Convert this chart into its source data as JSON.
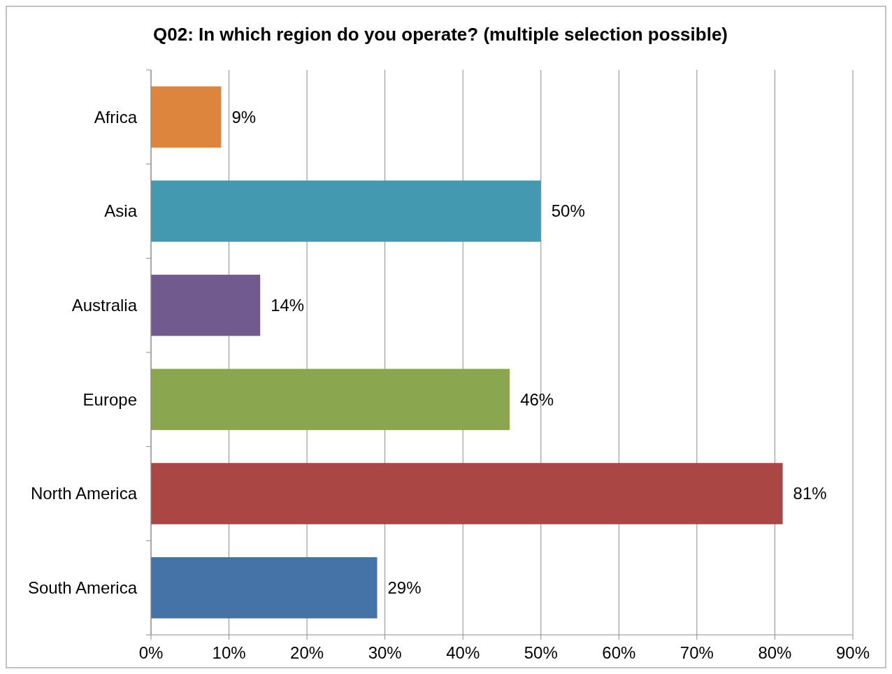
{
  "chart_data": {
    "type": "bar",
    "orientation": "horizontal",
    "title": "Q02: In which region do you operate? (multiple selection possible)",
    "categories": [
      "Africa",
      "Asia",
      "Australia",
      "Europe",
      "North America",
      "South America"
    ],
    "values": [
      9,
      50,
      14,
      46,
      81,
      29
    ],
    "colors": [
      "#dd843d",
      "#4399b0",
      "#715a8e",
      "#8aa64f",
      "#aa4644",
      "#4572a7"
    ],
    "value_labels": [
      "9%",
      "50%",
      "14%",
      "46%",
      "81%",
      "29%"
    ],
    "xlim": [
      0,
      90
    ],
    "xticks": [
      {
        "value": 0,
        "label": "0%"
      },
      {
        "value": 10,
        "label": "10%"
      },
      {
        "value": 20,
        "label": "20%"
      },
      {
        "value": 30,
        "label": "30%"
      },
      {
        "value": 40,
        "label": "40%"
      },
      {
        "value": 50,
        "label": "50%"
      },
      {
        "value": 60,
        "label": "60%"
      },
      {
        "value": 70,
        "label": "70%"
      },
      {
        "value": 80,
        "label": "80%"
      },
      {
        "value": 90,
        "label": "90%"
      }
    ],
    "grid": "x"
  }
}
